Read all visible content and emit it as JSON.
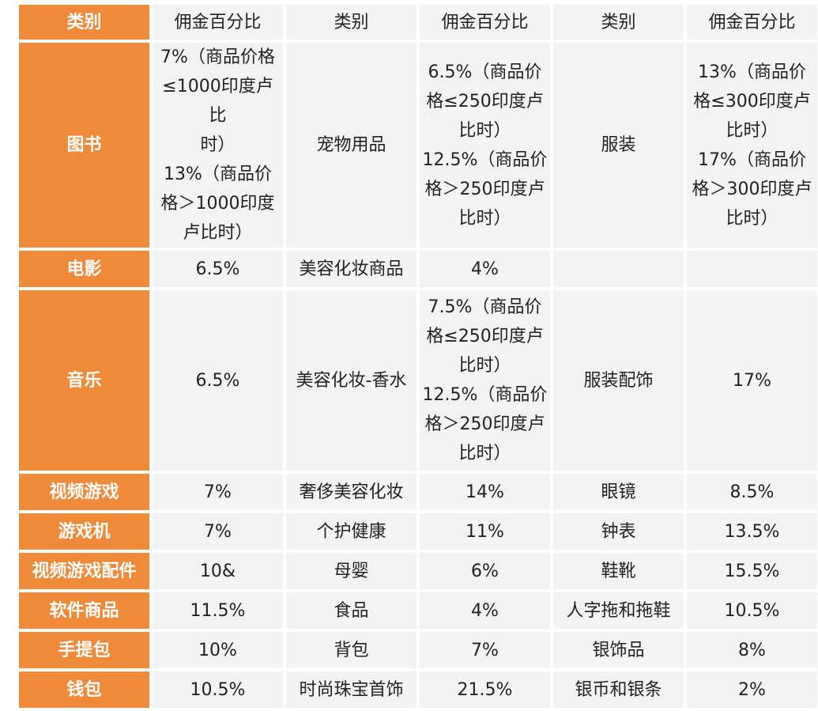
{
  "header": [
    "类别",
    "佣金百分比",
    "类别",
    "佣金百分比",
    "类别",
    "佣金百分比"
  ],
  "rows": [
    {
      "c1": "图书",
      "p1": [
        "7%（商品价格",
        "≤1000印度卢比",
        "时）",
        "13%（商品价",
        "格＞1000印度",
        "卢比时）"
      ],
      "c2": "宠物用品",
      "p2": [
        "6.5%（商品价",
        "格≤250印度卢",
        "比时）",
        "12.5%（商品价",
        "格＞250印度卢",
        "比时）"
      ],
      "c3": "服装",
      "p3": [
        "13%（商品价",
        "格≤300印度卢",
        "比时）",
        "17%（商品价",
        "格＞300印度卢",
        "比时）"
      ]
    },
    {
      "c1": "电影",
      "p1": [
        "6.5%"
      ],
      "c2": "美容化妆商品",
      "p2": [
        "4%"
      ],
      "c3": "",
      "p3": [
        ""
      ]
    },
    {
      "c1": "音乐",
      "p1": [
        "6.5%"
      ],
      "c2": "美容化妆-香水",
      "p2": [
        "7.5%（商品价",
        "格≤250印度卢",
        "比时）",
        "12.5%（商品价",
        "格＞250印度卢",
        "比时）"
      ],
      "c3": "服装配饰",
      "p3": [
        "17%"
      ]
    },
    {
      "c1": "视频游戏",
      "p1": [
        "7%"
      ],
      "c2": "奢侈美容化妆",
      "p2": [
        "14%"
      ],
      "c3": "眼镜",
      "p3": [
        "8.5%"
      ]
    },
    {
      "c1": "游戏机",
      "p1": [
        "7%"
      ],
      "c2": "个护健康",
      "p2": [
        "11%"
      ],
      "c3": "钟表",
      "p3": [
        "13.5%"
      ]
    },
    {
      "c1": "视频游戏配件",
      "p1": [
        "10&"
      ],
      "c2": "母婴",
      "p2": [
        "6%"
      ],
      "c3": "鞋靴",
      "p3": [
        "15.5%"
      ]
    },
    {
      "c1": "软件商品",
      "p1": [
        "11.5%"
      ],
      "c2": "食品",
      "p2": [
        "4%"
      ],
      "c3": "人字拖和拖鞋",
      "p3": [
        "10.5%"
      ]
    },
    {
      "c1": "手提包",
      "p1": [
        "10%"
      ],
      "c2": "背包",
      "p2": [
        "7%"
      ],
      "c3": "银饰品",
      "p3": [
        "8%"
      ]
    },
    {
      "c1": "钱包",
      "p1": [
        "10.5%"
      ],
      "c2": "时尚珠宝首饰",
      "p2": [
        "21.5%"
      ],
      "c3": "银币和银条",
      "p3": [
        "2%"
      ]
    }
  ]
}
